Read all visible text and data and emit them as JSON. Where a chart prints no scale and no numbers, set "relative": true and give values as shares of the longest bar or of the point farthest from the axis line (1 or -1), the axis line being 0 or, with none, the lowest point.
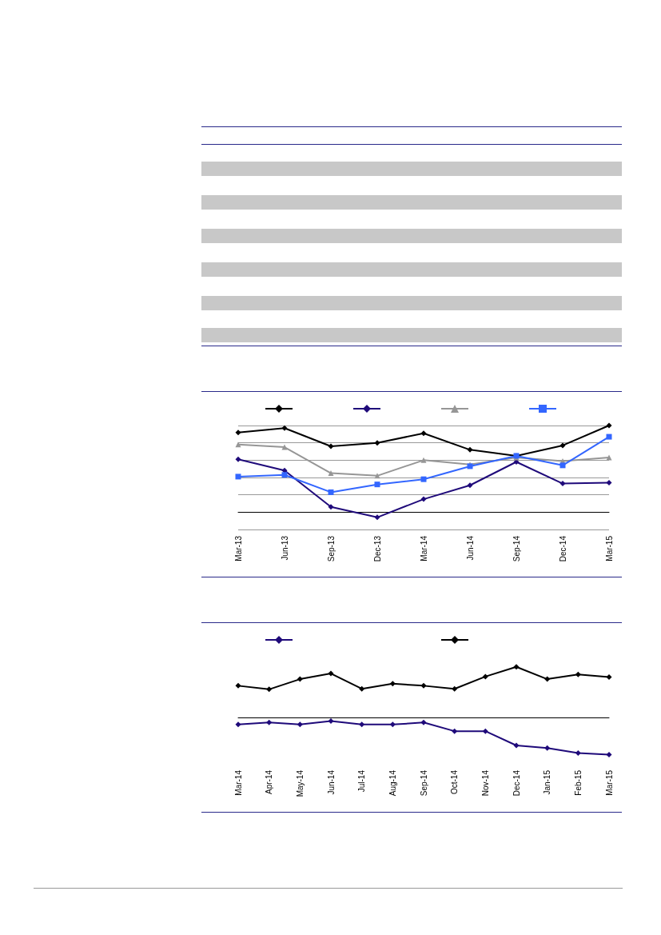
{
  "chart_data": [
    {
      "type": "line",
      "relative": true,
      "categories": [
        "Mar-13",
        "Jun-13",
        "Sep-13",
        "Dec-13",
        "Mar-14",
        "Jun-14",
        "Sep-14",
        "Dec-14",
        "Mar-15"
      ],
      "grid": "y",
      "series": [
        {
          "color": "#000000",
          "marker": "diamond",
          "values": [
            0.92,
            0.97,
            0.76,
            0.8,
            0.91,
            0.72,
            0.65,
            0.77,
            1
          ]
        },
        {
          "color": "#1f0a7a",
          "marker": "diamond",
          "values": [
            0.61,
            0.48,
            0.06,
            -0.06,
            0.15,
            0.31,
            0.58,
            0.33,
            0.34
          ]
        },
        {
          "color": "#969696",
          "marker": "triangle",
          "values": [
            0.78,
            0.75,
            0.45,
            0.42,
            0.6,
            0.55,
            0.63,
            0.59,
            0.63
          ]
        },
        {
          "color": "#3366ff",
          "marker": "square",
          "values": [
            0.41,
            0.43,
            0.23,
            0.32,
            0.38,
            0.53,
            0.65,
            0.54,
            0.87
          ]
        }
      ]
    },
    {
      "type": "line",
      "relative": true,
      "categories": [
        "Mar-14",
        "Apr-14",
        "May-14",
        "Jun-14",
        "Jul-14",
        "Aug-14",
        "Sep-14",
        "Oct-14",
        "Nov-14",
        "Dec-14",
        "Jan-15",
        "Feb-15",
        "Mar-15"
      ],
      "grid": false,
      "series": [
        {
          "color": "#1f0a7a",
          "marker": "diamond",
          "values": [
            -0.13,
            -0.09,
            -0.13,
            -0.06,
            -0.13,
            -0.13,
            -0.09,
            -0.26,
            -0.26,
            -0.54,
            -0.59,
            -0.69,
            -0.72
          ]
        },
        {
          "color": "#000000",
          "marker": "diamond",
          "values": [
            0.63,
            0.56,
            0.76,
            0.87,
            0.57,
            0.67,
            0.63,
            0.57,
            0.81,
            1,
            0.76,
            0.85,
            0.8
          ]
        }
      ]
    }
  ]
}
